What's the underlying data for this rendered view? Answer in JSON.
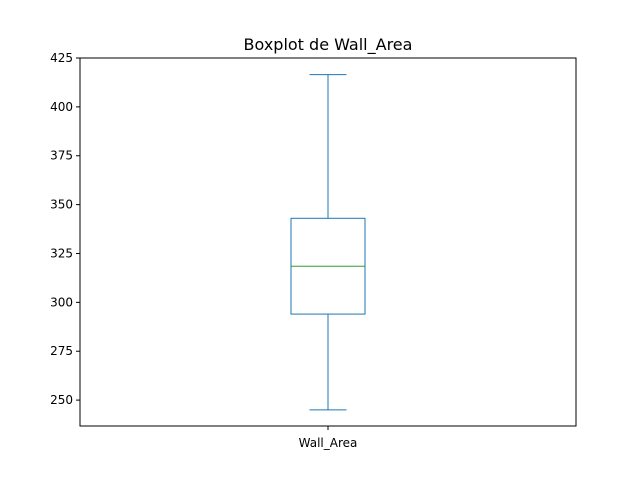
{
  "chart_data": {
    "type": "boxplot",
    "title": "Boxplot de Wall_Area",
    "categories": [
      "Wall_Area"
    ],
    "series": [
      {
        "min": 245.0,
        "q1": 294.0,
        "median": 318.5,
        "q3": 343.0,
        "max": 416.5
      }
    ],
    "ylim": [
      236.75,
      425.0
    ],
    "yticks": [
      250,
      275,
      300,
      325,
      350,
      375,
      400,
      425
    ],
    "grid": false,
    "colors": {
      "box": "#1f77b4",
      "median": "#2ca02c",
      "axes": "#000000"
    }
  }
}
